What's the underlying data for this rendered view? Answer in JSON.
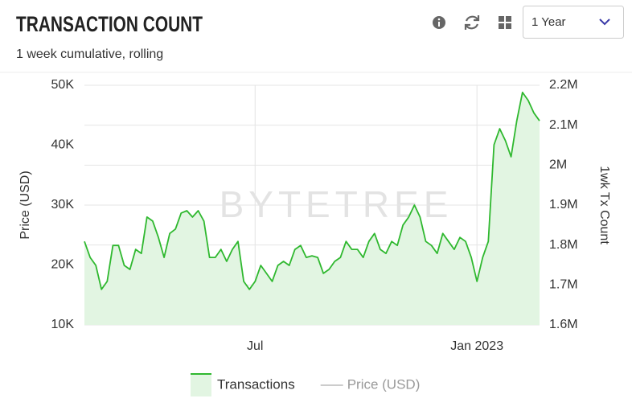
{
  "controls": {
    "range": "1 Year"
  },
  "chart_data": {
    "type": "line",
    "title": "TRANSACTION COUNT",
    "subtitle": "1 week cumulative, rolling",
    "watermark": "BYTETREE",
    "ylabel": "Price (USD)",
    "y2label": "1wk Tx Count",
    "categories": [
      null,
      null,
      null,
      null,
      null,
      null,
      null,
      null,
      null,
      null,
      null,
      null,
      null,
      null,
      null,
      null,
      null,
      null,
      null,
      null,
      null,
      null,
      null,
      null,
      null,
      null,
      null,
      null,
      null,
      null,
      "Jul",
      null,
      null,
      null,
      null,
      null,
      null,
      null,
      null,
      null,
      null,
      null,
      null,
      null,
      null,
      null,
      null,
      null,
      null,
      null,
      null,
      null,
      null,
      null,
      null,
      null,
      null,
      null,
      null,
      null,
      null,
      null,
      null,
      null,
      null,
      null,
      null,
      null,
      null,
      "Jan 2023",
      null,
      null,
      null,
      null,
      null,
      null,
      null,
      null,
      null,
      null,
      null
    ],
    "ylim": [
      10000,
      50000
    ],
    "yticks": [
      {
        "value": 10000,
        "label": "10K"
      },
      {
        "value": 20000,
        "label": "20K"
      },
      {
        "value": 30000,
        "label": "30K"
      },
      {
        "value": 40000,
        "label": "40K"
      },
      {
        "value": 50000,
        "label": "50K"
      }
    ],
    "y2lim": [
      1600000,
      2200000
    ],
    "y2ticks": [
      {
        "value": 1600000,
        "label": "1.6M"
      },
      {
        "value": 1700000,
        "label": "1.7M"
      },
      {
        "value": 1800000,
        "label": "1.8M"
      },
      {
        "value": 1900000,
        "label": "1.9M"
      },
      {
        "value": 2000000,
        "label": "2M"
      },
      {
        "value": 2100000,
        "label": "2.1M"
      },
      {
        "value": 2200000,
        "label": "2.2M"
      }
    ],
    "grid": true,
    "series": [
      {
        "name": "Transactions",
        "color": "#2fb82f",
        "fill": "#e2f5e2",
        "axis": "y2",
        "visible": true,
        "values": [
          1809000,
          1769000,
          1749000,
          1689000,
          1709000,
          1799000,
          1799000,
          1749000,
          1739000,
          1789000,
          1779000,
          1870000,
          1860000,
          1819000,
          1769000,
          1829000,
          1840000,
          1880000,
          1886000,
          1870000,
          1886000,
          1860000,
          1769000,
          1769000,
          1789000,
          1759000,
          1789000,
          1809000,
          1709000,
          1689000,
          1709000,
          1749000,
          1729000,
          1709000,
          1749000,
          1759000,
          1749000,
          1789000,
          1799000,
          1769000,
          1773000,
          1769000,
          1729000,
          1739000,
          1759000,
          1769000,
          1809000,
          1789000,
          1789000,
          1769000,
          1809000,
          1829000,
          1789000,
          1779000,
          1809000,
          1799000,
          1850000,
          1870000,
          1900000,
          1870000,
          1809000,
          1799000,
          1779000,
          1829000,
          1809000,
          1789000,
          1819000,
          1809000,
          1769000,
          1709000,
          1769000,
          1809000,
          2051000,
          2091000,
          2061000,
          2021000,
          2111000,
          2182000,
          2162000,
          2131000,
          2111000
        ]
      },
      {
        "name": "Price (USD)",
        "color": "#999999",
        "axis": "y",
        "visible": false,
        "values": [
          null,
          null,
          null,
          null,
          null,
          null,
          null,
          null,
          null,
          null,
          null,
          null,
          null,
          null,
          null,
          null,
          null,
          null,
          null,
          null,
          null,
          null,
          null,
          null,
          null,
          null,
          null,
          null,
          null,
          null,
          null,
          null,
          null,
          null,
          null,
          null,
          null,
          null,
          null,
          null,
          null,
          null,
          null,
          null,
          null,
          null,
          null,
          null,
          null,
          null,
          null,
          null,
          null,
          null,
          null,
          null,
          null,
          null,
          null,
          null,
          null,
          null,
          null,
          null,
          null,
          null,
          null,
          null,
          null,
          null,
          null,
          null,
          null,
          null,
          null,
          null,
          null,
          null,
          null,
          null,
          null
        ]
      }
    ]
  }
}
